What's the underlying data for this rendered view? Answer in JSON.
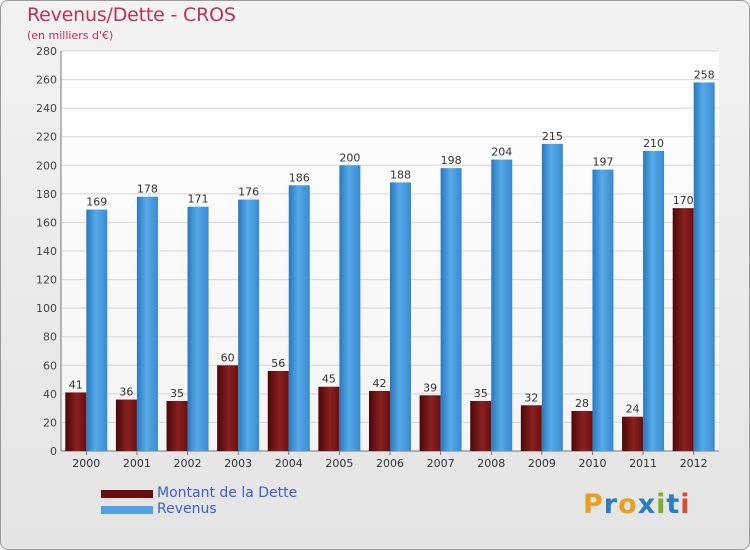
{
  "header": {
    "title": "Revenus/Dette - CROS",
    "subtitle": "(en milliers d'€)"
  },
  "legend": {
    "debt_label": "Montant de la Dette",
    "revenue_label": "Revenus"
  },
  "logo": {
    "letters": [
      "P",
      "r",
      "o",
      "x",
      "i",
      "t",
      "i"
    ],
    "colors": [
      "#e8a020",
      "#2a7fc0",
      "#e8a020",
      "#2a7fc0",
      "#7ab030",
      "#2a7fc0",
      "#d05030"
    ]
  },
  "colors": {
    "debt": "#7a1515",
    "revenue": "#4fa3e3"
  },
  "chart_data": {
    "type": "bar",
    "title": "Revenus/Dette - CROS",
    "subtitle": "(en milliers d'€)",
    "categories": [
      "2000",
      "2001",
      "2002",
      "2003",
      "2004",
      "2005",
      "2006",
      "2007",
      "2008",
      "2009",
      "2010",
      "2011",
      "2012"
    ],
    "series": [
      {
        "name": "Montant de la Dette",
        "values": [
          41,
          36,
          35,
          60,
          56,
          45,
          42,
          39,
          35,
          32,
          28,
          24,
          170
        ]
      },
      {
        "name": "Revenus",
        "values": [
          169,
          178,
          171,
          176,
          186,
          200,
          188,
          198,
          204,
          215,
          197,
          210,
          258
        ]
      }
    ],
    "ylim": [
      0,
      280
    ],
    "yticks": [
      0,
      20,
      40,
      60,
      80,
      100,
      120,
      140,
      160,
      180,
      200,
      220,
      240,
      260,
      280
    ],
    "grid": true,
    "legend_position": "bottom-left"
  }
}
